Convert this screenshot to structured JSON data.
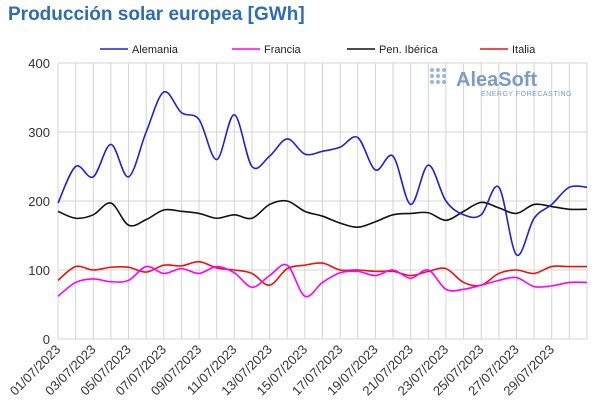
{
  "chart_data": {
    "type": "line",
    "title": "Producción solar europea [GWh]",
    "xlabel": "",
    "ylabel": "",
    "ylim": [
      0,
      400
    ],
    "yticks": [
      0,
      100,
      200,
      300,
      400
    ],
    "grid": true,
    "legend_position": "top",
    "x": [
      "01/07/2023",
      "02/07/2023",
      "03/07/2023",
      "04/07/2023",
      "05/07/2023",
      "06/07/2023",
      "07/07/2023",
      "08/07/2023",
      "09/07/2023",
      "10/07/2023",
      "11/07/2023",
      "12/07/2023",
      "13/07/2023",
      "14/07/2023",
      "15/07/2023",
      "16/07/2023",
      "17/07/2023",
      "18/07/2023",
      "19/07/2023",
      "20/07/2023",
      "21/07/2023",
      "22/07/2023",
      "23/07/2023",
      "24/07/2023",
      "25/07/2023",
      "26/07/2023",
      "27/07/2023",
      "28/07/2023",
      "29/07/2023",
      "30/07/2023",
      "31/07/2023"
    ],
    "xtick_labels": [
      "01/07/2023",
      "03/07/2023",
      "05/07/2023",
      "07/07/2023",
      "09/07/2023",
      "11/07/2023",
      "13/07/2023",
      "15/07/2023",
      "17/07/2023",
      "19/07/2023",
      "21/07/2023",
      "23/07/2023",
      "25/07/2023",
      "27/07/2023",
      "29/07/2023"
    ],
    "series": [
      {
        "name": "Alemania",
        "color": "#1f1fe0",
        "values": [
          197,
          250,
          235,
          282,
          235,
          300,
          358,
          328,
          318,
          260,
          325,
          250,
          265,
          290,
          268,
          272,
          278,
          292,
          245,
          265,
          195,
          252,
          200,
          180,
          180,
          220,
          122,
          175,
          195,
          220,
          220
        ]
      },
      {
        "name": "Francia",
        "color": "#ff00ff",
        "values": [
          62,
          82,
          87,
          83,
          85,
          105,
          95,
          102,
          95,
          105,
          96,
          75,
          92,
          107,
          62,
          82,
          96,
          98,
          92,
          100,
          88,
          100,
          72,
          72,
          78,
          85,
          89,
          76,
          77,
          82,
          82
        ]
      },
      {
        "name": "Pen. Ibérica",
        "color": "#111111",
        "values": [
          185,
          175,
          180,
          197,
          165,
          173,
          187,
          185,
          182,
          175,
          180,
          175,
          195,
          200,
          185,
          178,
          168,
          162,
          170,
          180,
          182,
          183,
          172,
          185,
          198,
          190,
          182,
          195,
          192,
          188,
          188
        ]
      },
      {
        "name": "Italia",
        "color": "#ee1111",
        "values": [
          85,
          105,
          100,
          104,
          104,
          97,
          107,
          106,
          112,
          103,
          100,
          95,
          78,
          102,
          107,
          110,
          100,
          100,
          98,
          98,
          92,
          98,
          102,
          82,
          78,
          95,
          100,
          95,
          105,
          105,
          105
        ]
      }
    ]
  },
  "logo": {
    "main": "AleaSoft",
    "sub": "ENERGY FORECASTING"
  }
}
